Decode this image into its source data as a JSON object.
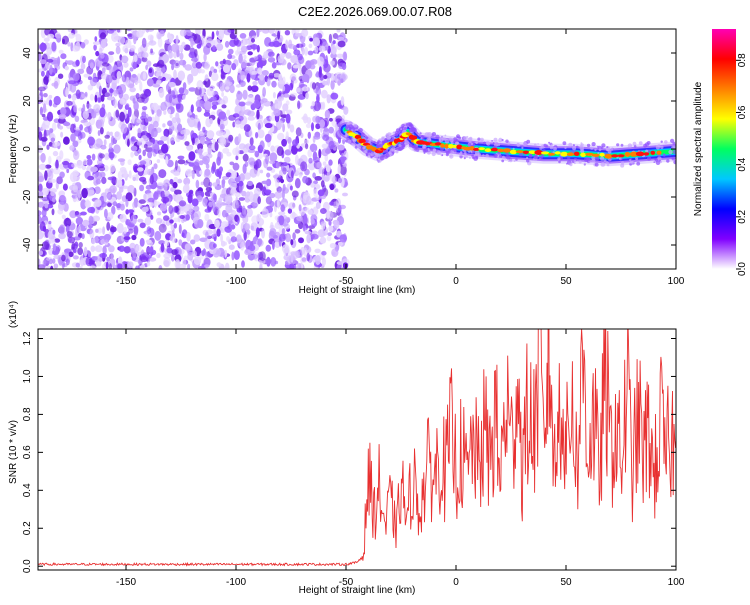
{
  "title": "C2E2.2026.069.00.07.R08",
  "chart_data": [
    {
      "type": "heatmap",
      "name": "spectrogram",
      "xlabel": "Height of straight line (km)",
      "ylabel": "Frequency (Hz)",
      "xlim": [
        -190,
        100
      ],
      "ylim": [
        -50,
        50
      ],
      "xticks": [
        -150,
        -100,
        -50,
        0,
        50,
        100
      ],
      "xtick_labels": [
        "-150",
        "-100",
        "-50",
        "0",
        "50",
        "100"
      ],
      "yticks": [
        -40,
        -20,
        0,
        20,
        40
      ],
      "ytick_labels": [
        "-40",
        "-20",
        "0",
        "20",
        "40"
      ],
      "noise_region_x": [
        -190,
        -50
      ],
      "ridge": [
        {
          "x": -50,
          "y": 8
        },
        {
          "x": -45,
          "y": 5
        },
        {
          "x": -40,
          "y": 1
        },
        {
          "x": -35,
          "y": -1
        },
        {
          "x": -30,
          "y": 2
        },
        {
          "x": -25,
          "y": 4
        },
        {
          "x": -22,
          "y": 7
        },
        {
          "x": -18,
          "y": 3
        },
        {
          "x": -10,
          "y": 2
        },
        {
          "x": 0,
          "y": 1
        },
        {
          "x": 10,
          "y": 0
        },
        {
          "x": 25,
          "y": -1
        },
        {
          "x": 40,
          "y": -2
        },
        {
          "x": 55,
          "y": -2
        },
        {
          "x": 70,
          "y": -3
        },
        {
          "x": 85,
          "y": -2
        },
        {
          "x": 100,
          "y": -1
        }
      ],
      "colorbar": {
        "label": "Normalized spectral amplitude",
        "range": [
          0,
          0.92
        ],
        "ticks": [
          0.0,
          0.2,
          0.4,
          0.6,
          0.8
        ],
        "tick_labels": [
          "0.0",
          "0.2",
          "0.4",
          "0.6",
          "0.8"
        ],
        "stops": [
          "#ffffff",
          "#8000ff",
          "#0000ff",
          "#00c8ff",
          "#00ff60",
          "#ffff00",
          "#ff8000",
          "#ff0000",
          "#ff00b4"
        ]
      }
    },
    {
      "type": "line",
      "name": "snr",
      "xlabel": "Height of straight line (km)",
      "ylabel": "SNR (10 * v/v)",
      "exponent_label": "(x10⁴)",
      "xlim": [
        -190,
        100
      ],
      "ylim": [
        -0.02,
        1.25
      ],
      "xticks": [
        -150,
        -100,
        -50,
        0,
        50,
        100
      ],
      "xtick_labels": [
        "-150",
        "-100",
        "-50",
        "0",
        "50",
        "100"
      ],
      "yticks": [
        0.0,
        0.2,
        0.4,
        0.6,
        0.8,
        1.0,
        1.2
      ],
      "ytick_labels": [
        "0.0",
        "0.2",
        "0.4",
        "0.6",
        "0.8",
        "1.0",
        "1.2"
      ],
      "color": "#e83030",
      "series": {
        "x": [
          -190,
          -160,
          -130,
          -100,
          -70,
          -50,
          -45,
          -42,
          -40,
          -37,
          -35,
          -32,
          -30,
          -27,
          -25,
          -22,
          -20,
          -17,
          -15,
          -12,
          -10,
          -7,
          -5,
          -2,
          0,
          3,
          5,
          8,
          10,
          13,
          15,
          18,
          20,
          23,
          25,
          28,
          30,
          33,
          35,
          38,
          40,
          42,
          45,
          48,
          50,
          53,
          55,
          58,
          60,
          63,
          65,
          68,
          70,
          73,
          75,
          78,
          80,
          83,
          85,
          88,
          90,
          93,
          95,
          98,
          100
        ],
        "y": [
          0.01,
          0.01,
          0.01,
          0.01,
          0.01,
          0.01,
          0.02,
          0.06,
          0.48,
          0.28,
          0.42,
          0.2,
          0.35,
          0.18,
          0.45,
          0.22,
          0.5,
          0.3,
          0.38,
          0.55,
          0.45,
          0.62,
          0.48,
          0.7,
          0.52,
          0.6,
          0.45,
          0.68,
          0.5,
          0.72,
          0.55,
          0.8,
          0.45,
          0.9,
          0.6,
          1.05,
          0.5,
          0.85,
          0.65,
          1.1,
          0.55,
          1.25,
          0.48,
          1.0,
          0.58,
          0.92,
          0.5,
          1.1,
          0.62,
          0.8,
          0.45,
          1.02,
          0.6,
          0.75,
          0.52,
          0.95,
          0.48,
          0.8,
          0.58,
          0.72,
          0.45,
          0.78,
          0.55,
          0.7,
          0.52
        ]
      }
    }
  ]
}
